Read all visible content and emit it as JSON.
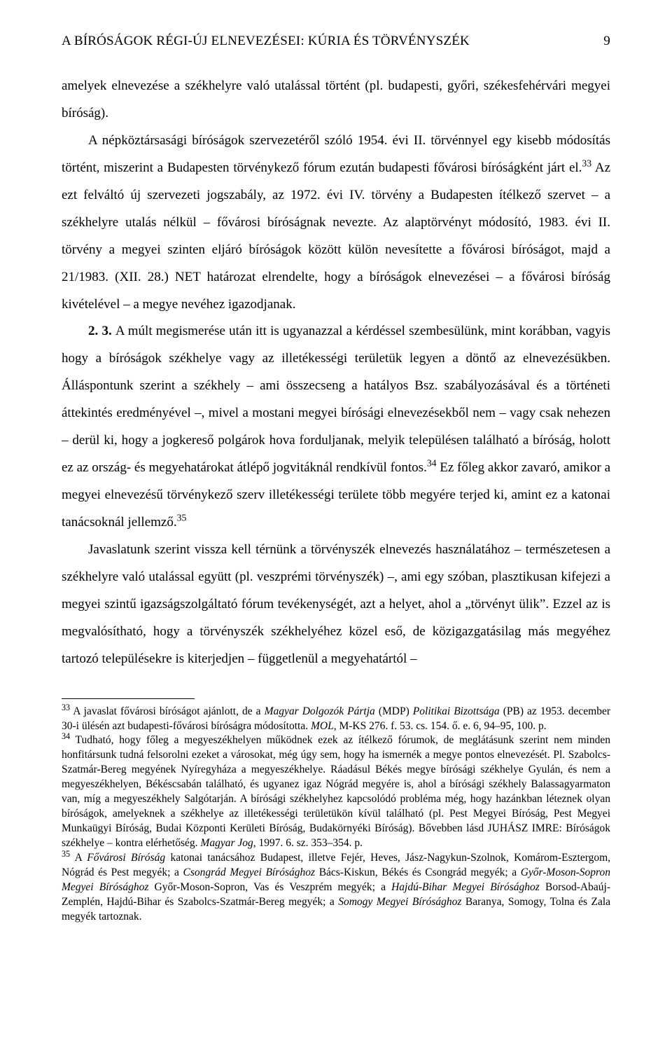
{
  "page": {
    "running_title": "A BÍRÓSÁGOK RÉGI-ÚJ ELNEVEZÉSEI: KÚRIA ÉS TÖRVÉNYSZÉK",
    "page_number": "9"
  },
  "paragraphs": {
    "p1": "amelyek elnevezése a székhelyre való utalással történt (pl. budapesti, győri, székesfehérvári megyei bíróság).",
    "p2_a": "A népköztársasági bíróságok szervezetéről szóló 1954. évi II. törvénnyel egy kisebb módosítás történt, miszerint a Budapesten törvénykező fórum ezután budapesti fővárosi bíróságként járt el.",
    "p2_b": " Az ezt felváltó új szervezeti jogszabály, az 1972. évi IV. törvény a Budapesten ítélkező szervet – a székhelyre utalás nélkül – fővárosi bíróságnak nevezte. Az alaptörvényt módosító, 1983. évi II. törvény a megyei szinten eljáró bíróságok között külön nevesítette a fővárosi bíróságot, majd a 21/1983. (XII. 28.) NET határozat elrendelte, hogy a bíróságok elnevezései – a fővárosi bíróság kivételével – a megye nevéhez igazodjanak.",
    "p3_a": "2. 3. ",
    "p3_b": "A múlt megismerése után itt is ugyanazzal a kérdéssel szembesülünk, mint korábban, vagyis hogy a bíróságok székhelye vagy az illetékességi területük legyen a döntő az elnevezésükben. Álláspontunk szerint a székhely – ami összecseng a hatályos Bsz. szabályozásával és a történeti áttekintés eredményével –, mivel a mostani megyei bírósági elnevezésekből nem – vagy csak nehezen – derül ki, hogy a jogkereső polgárok hova forduljanak, melyik településen található a bíróság, holott ez az ország- és megyehatárokat átlépő jogvitáknál rendkívül fontos.",
    "p3_c": " Ez főleg akkor zavaró, amikor a megyei elnevezésű törvénykező szerv illetékességi területe több megyére terjed ki, amint ez a katonai tanácsoknál jellemző.",
    "p4": "Javaslatunk szerint vissza kell térnünk a törvényszék elnevezés használatához – természetesen a székhelyre való utalással együtt (pl. veszprémi törvényszék) –, ami egy szóban, plasztikusan kifejezi a megyei szintű igazságszolgáltató fórum tevékenységét, azt a helyet, ahol a „törvényt ülik”. Ezzel az is megvalósítható, hogy a törvényszék székhelyéhez közel eső, de közigazgatásilag más megyéhez tartozó településekre is kiterjedjen – függetlenül a megyehatártól –"
  },
  "footnote_refs": {
    "r33": "33",
    "r34": "34",
    "r35": "35"
  },
  "footnotes": {
    "f33_a": " A javaslat fővárosi bíróságot ajánlott, de a ",
    "f33_b": "Magyar Dolgozók Pártja",
    "f33_c": " (MDP) ",
    "f33_d": "Politikai Bizottsága",
    "f33_e": " (PB) az 1953. december 30-i ülésén azt budapesti-fővárosi bíróságra módosította. ",
    "f33_f": "MOL",
    "f33_g": ", M-KS 276. f. 53. cs. 154. ő. e. 6, 94–95, 100. p.",
    "f34_a": " Tudható, hogy főleg a megyeszékhelyen működnek ezek az ítélkező fórumok, de meglátásunk szerint nem minden honfitársunk tudná felsorolni ezeket a városokat, még úgy sem, hogy ha ismernék a megye pontos elnevezését. Pl. Szabolcs-Szatmár-Bereg megyének Nyíregyháza a megyeszékhelye. Ráadásul Békés megye bírósági székhelye Gyulán, és nem a megyeszékhelyen, Békéscsabán található, és ugyanez igaz Nógrád megyére is, ahol a bírósági székhely Balassagyarmaton van, míg a megyeszékhely Salgótarján. A bírósági székhelyhez kapcsolódó probléma még, hogy hazánkban léteznek olyan bíróságok, amelyeknek a székhelye az illetékességi területükön kívül található (pl. Pest Megyei Bíróság, Pest Megyei Munkaügyi Bíróság, Budai Központi Kerületi Bíróság, Budakörnyéki Bíróság). Bővebben lásd J",
    "f34_b": "UHÁSZ ",
    "f34_c": "I",
    "f34_d": "MRE",
    "f34_e": ": Bíróságok székhelye – kontra elérhetőség. ",
    "f34_f": "Magyar Jog",
    "f34_g": ", 1997. 6. sz. 353–354. p.",
    "f35_a": " A ",
    "f35_b": "Fővárosi Bíróság",
    "f35_c": " katonai tanácsához Budapest, illetve Fejér, Heves, Jász-Nagykun-Szolnok, Komárom-Esztergom, Nógrád és Pest megyék; a ",
    "f35_d": "Csongrád Megyei Bírósághoz",
    "f35_e": " Bács-Kiskun, Békés és Csongrád megyék; a ",
    "f35_f": "Győr-Moson-Sopron Megyei Bírósághoz",
    "f35_g": " Győr-Moson-Sopron, Vas és Veszprém megyék; a ",
    "f35_h": "Hajdú-Bihar Megyei Bírósághoz",
    "f35_i": " Borsod-Abaúj-Zemplén, Hajdú-Bihar és Szabolcs-Szatmár-Bereg megyék; a ",
    "f35_j": "Somogy Megyei Bírósághoz",
    "f35_k": " Baranya, Somogy, Tolna és Zala megyék tartoznak."
  }
}
